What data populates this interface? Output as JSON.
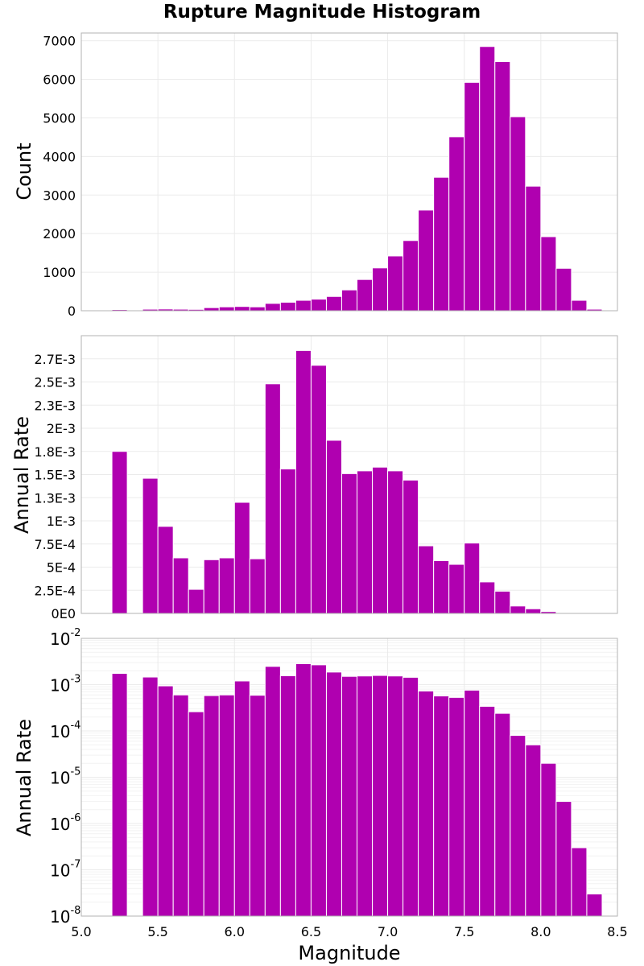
{
  "title": "Rupture Magnitude Histogram",
  "xlabel": "Magnitude",
  "chart_data": [
    {
      "type": "bar",
      "title": "Rupture Magnitude Histogram",
      "xlabel": "Magnitude",
      "ylabel": "Count",
      "xlim": [
        5.0,
        8.5
      ],
      "ylim": [
        0,
        7200
      ],
      "xticks": [
        "5.0",
        "5.5",
        "6.0",
        "6.5",
        "7.0",
        "7.5",
        "8.0",
        "8.5"
      ],
      "yticks": [
        {
          "value": 0,
          "label": "0"
        },
        {
          "value": 1000,
          "label": "1000"
        },
        {
          "value": 2000,
          "label": "2000"
        },
        {
          "value": 3000,
          "label": "3000"
        },
        {
          "value": 4000,
          "label": "4000"
        },
        {
          "value": 5000,
          "label": "5000"
        },
        {
          "value": 6000,
          "label": "6000"
        },
        {
          "value": 7000,
          "label": "7000"
        }
      ],
      "bin_width": 0.1,
      "x": [
        5.25,
        5.45,
        5.55,
        5.65,
        5.75,
        5.85,
        5.95,
        6.05,
        6.15,
        6.25,
        6.35,
        6.45,
        6.55,
        6.65,
        6.75,
        6.85,
        6.95,
        7.05,
        7.15,
        7.25,
        7.35,
        7.45,
        7.55,
        7.65,
        7.75,
        7.85,
        7.95,
        8.05,
        8.15,
        8.25,
        8.35
      ],
      "values": [
        30,
        40,
        45,
        40,
        35,
        80,
        100,
        110,
        100,
        190,
        220,
        270,
        300,
        370,
        540,
        810,
        1110,
        1420,
        1820,
        2610,
        3460,
        4510,
        5920,
        6850,
        6460,
        5030,
        3230,
        1920,
        1100,
        270,
        40
      ]
    },
    {
      "type": "bar",
      "ylabel": "Annual Rate",
      "xlabel": "Magnitude",
      "xlim": [
        5.0,
        8.5
      ],
      "ylim": [
        0,
        0.003
      ],
      "xticks": [
        "5.0",
        "5.5",
        "6.0",
        "6.5",
        "7.0",
        "7.5",
        "8.0",
        "8.5"
      ],
      "yticks": [
        {
          "value": 0,
          "label": "0E0"
        },
        {
          "value": 0.00025,
          "label": "2.5E-4"
        },
        {
          "value": 0.0005,
          "label": "5E-4"
        },
        {
          "value": 0.00075,
          "label": "7.5E-4"
        },
        {
          "value": 0.001,
          "label": "1E-3"
        },
        {
          "value": 0.00125,
          "label": "1.3E-3"
        },
        {
          "value": 0.0015,
          "label": "1.5E-3"
        },
        {
          "value": 0.00175,
          "label": "1.8E-3"
        },
        {
          "value": 0.002,
          "label": "2E-3"
        },
        {
          "value": 0.00225,
          "label": "2.3E-3"
        },
        {
          "value": 0.0025,
          "label": "2.5E-3"
        },
        {
          "value": 0.00275,
          "label": "2.7E-3"
        }
      ],
      "bin_width": 0.1,
      "x": [
        5.25,
        5.45,
        5.55,
        5.65,
        5.75,
        5.85,
        5.95,
        6.05,
        6.15,
        6.25,
        6.35,
        6.45,
        6.55,
        6.65,
        6.75,
        6.85,
        6.95,
        7.05,
        7.15,
        7.25,
        7.35,
        7.45,
        7.55,
        7.65,
        7.75,
        7.85,
        7.95,
        8.05,
        8.15,
        8.25,
        8.35
      ],
      "values": [
        0.00175,
        0.00146,
        0.00094,
        0.0006,
        0.00026,
        0.00058,
        0.0006,
        0.0012,
        0.00059,
        0.00248,
        0.00156,
        0.00284,
        0.00268,
        0.00187,
        0.00151,
        0.00154,
        0.00158,
        0.00154,
        0.00144,
        0.00073,
        0.00057,
        0.00053,
        0.00076,
        0.00034,
        0.00024,
        8e-05,
        5e-05,
        2e-05,
        3e-06,
        3e-07,
        3e-08
      ]
    },
    {
      "type": "bar",
      "scale": "log",
      "ylabel": "Annual Rate",
      "xlabel": "Magnitude",
      "xlim": [
        5.0,
        8.5
      ],
      "ylim": [
        1e-08,
        0.01
      ],
      "xticks": [
        "5.0",
        "5.5",
        "6.0",
        "6.5",
        "7.0",
        "7.5",
        "8.0",
        "8.5"
      ],
      "yticks": [
        {
          "exp": -2,
          "base": "10",
          "sup": "-2"
        },
        {
          "exp": -3,
          "base": "10",
          "sup": "-3"
        },
        {
          "exp": -4,
          "base": "10",
          "sup": "-4"
        },
        {
          "exp": -5,
          "base": "10",
          "sup": "-5"
        },
        {
          "exp": -6,
          "base": "10",
          "sup": "-6"
        },
        {
          "exp": -7,
          "base": "10",
          "sup": "-7"
        },
        {
          "exp": -8,
          "base": "10",
          "sup": "-8"
        }
      ],
      "bin_width": 0.1,
      "x": [
        5.25,
        5.45,
        5.55,
        5.65,
        5.75,
        5.85,
        5.95,
        6.05,
        6.15,
        6.25,
        6.35,
        6.45,
        6.55,
        6.65,
        6.75,
        6.85,
        6.95,
        7.05,
        7.15,
        7.25,
        7.35,
        7.45,
        7.55,
        7.65,
        7.75,
        7.85,
        7.95,
        8.05,
        8.15,
        8.25,
        8.35
      ],
      "values": [
        0.00175,
        0.00146,
        0.00094,
        0.0006,
        0.00026,
        0.00058,
        0.0006,
        0.0012,
        0.00059,
        0.00248,
        0.00156,
        0.00284,
        0.00268,
        0.00187,
        0.00151,
        0.00154,
        0.00158,
        0.00154,
        0.00144,
        0.00073,
        0.00057,
        0.00053,
        0.00076,
        0.00034,
        0.00024,
        8e-05,
        5e-05,
        2e-05,
        3e-06,
        3e-07,
        3e-08
      ]
    }
  ]
}
